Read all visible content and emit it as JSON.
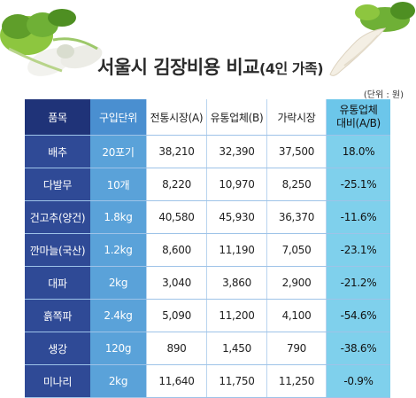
{
  "title": {
    "main": "서울시 김장비용 비교",
    "suffix": "(4인 가족)"
  },
  "unit_note": "(단위 : 원)",
  "table": {
    "headers": {
      "item": "품목",
      "unit": "구입단위",
      "traditional": "전통시장(A)",
      "distributor": "유통업체(B)",
      "street": "가락시장",
      "ratio_line1": "유통업체",
      "ratio_line2": "대비(A/B)"
    },
    "rows": [
      {
        "item": "배추",
        "unit": "20포기",
        "traditional": "38,210",
        "distributor": "32,390",
        "street": "37,500",
        "ratio": "18.0%"
      },
      {
        "item": "다발무",
        "unit": "10개",
        "traditional": "8,220",
        "distributor": "10,970",
        "street": "8,250",
        "ratio": "-25.1%"
      },
      {
        "item": "건고추(양건)",
        "unit": "1.8kg",
        "traditional": "40,580",
        "distributor": "45,930",
        "street": "36,370",
        "ratio": "-11.6%"
      },
      {
        "item": "깐마늘(국산)",
        "unit": "1.2kg",
        "traditional": "8,600",
        "distributor": "11,190",
        "street": "7,050",
        "ratio": "-23.1%"
      },
      {
        "item": "대파",
        "unit": "2kg",
        "traditional": "3,040",
        "distributor": "3,860",
        "street": "2,900",
        "ratio": "-21.2%"
      },
      {
        "item": "흙쪽파",
        "unit": "2.4kg",
        "traditional": "5,090",
        "distributor": "11,200",
        "street": "4,100",
        "ratio": "-54.6%"
      },
      {
        "item": "생강",
        "unit": "120g",
        "traditional": "890",
        "distributor": "1,450",
        "street": "790",
        "ratio": "-38.6%"
      },
      {
        "item": "미나리",
        "unit": "2kg",
        "traditional": "11,640",
        "distributor": "11,750",
        "street": "11,250",
        "ratio": "-0.9%"
      }
    ]
  },
  "colors": {
    "item_column": "#2f4a96",
    "unit_column": "#5aa2d9",
    "ratio_column": "#7fd0ec"
  },
  "icons": [
    "napa-cabbage-illustration",
    "radish-illustration"
  ]
}
